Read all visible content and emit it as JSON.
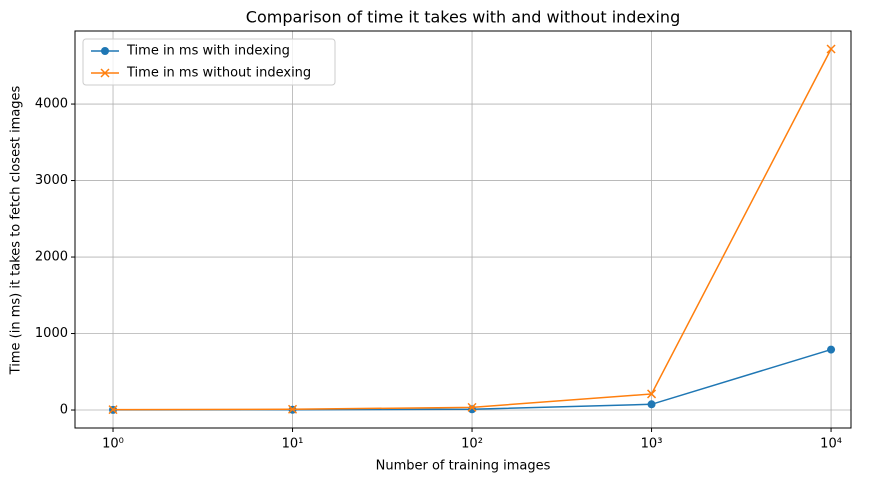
{
  "chart_data": {
    "type": "line",
    "title": "Comparison of time it takes with and without indexing",
    "x_label": "Number of training images",
    "y_label": "Time (in ms) it takes to fetch closest images",
    "x": [
      1,
      10,
      100,
      1000,
      10000
    ],
    "xscale": "log",
    "series": [
      {
        "name": "Time in ms with indexing",
        "color": "#1f77b4",
        "marker": "o",
        "values": [
          2,
          3,
          10,
          75,
          790
        ]
      },
      {
        "name": "Time in ms without indexing",
        "color": "#ff7f0e",
        "marker": "x",
        "values": [
          5,
          10,
          35,
          210,
          4720
        ]
      }
    ],
    "xlim": [
      0.614,
      12915
    ],
    "ylim": [
      -235,
      4955
    ],
    "xticks": [
      {
        "value": 1,
        "label": "10⁰"
      },
      {
        "value": 10,
        "label": "10¹"
      },
      {
        "value": 100,
        "label": "10²"
      },
      {
        "value": 1000,
        "label": "10³"
      },
      {
        "value": 10000,
        "label": "10⁴"
      }
    ],
    "yticks": [
      0,
      1000,
      2000,
      3000,
      4000
    ],
    "grid": true,
    "legend": "upper left"
  }
}
